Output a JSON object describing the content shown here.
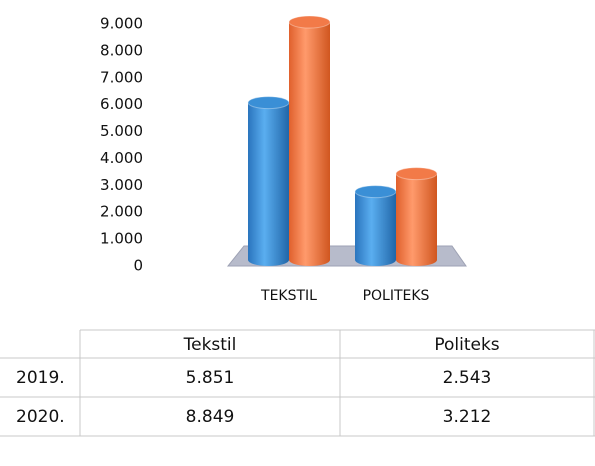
{
  "chart_data": {
    "type": "bar",
    "categories": [
      "TEKSTIL",
      "POLITEKS"
    ],
    "series": [
      {
        "name": "2019.",
        "color": "#3a8fd6",
        "values": [
          5851,
          2543
        ],
        "value_labels": [
          "5.851",
          "2.543"
        ]
      },
      {
        "name": "2020.",
        "color": "#f27a48",
        "values": [
          8849,
          3212
        ],
        "value_labels": [
          "8.849",
          "3.212"
        ]
      }
    ],
    "ylim": [
      0,
      9000
    ],
    "yticks": [
      0,
      {
        "value": 1000,
        "label": "1.000"
      },
      {
        "value": 2000,
        "label": "2.000"
      },
      {
        "value": 3000,
        "label": "3.000"
      },
      {
        "value": 4000,
        "label": "4.000"
      },
      {
        "value": 5000,
        "label": "5.000"
      },
      {
        "value": 6000,
        "label": "6.000"
      },
      {
        "value": 7000,
        "label": "7.000"
      },
      {
        "value": 8000,
        "label": "8.000"
      },
      {
        "value": 9000,
        "label": "9.000"
      }
    ],
    "grid": false
  },
  "table": {
    "header": [
      "Tekstil",
      "Politeks"
    ]
  }
}
